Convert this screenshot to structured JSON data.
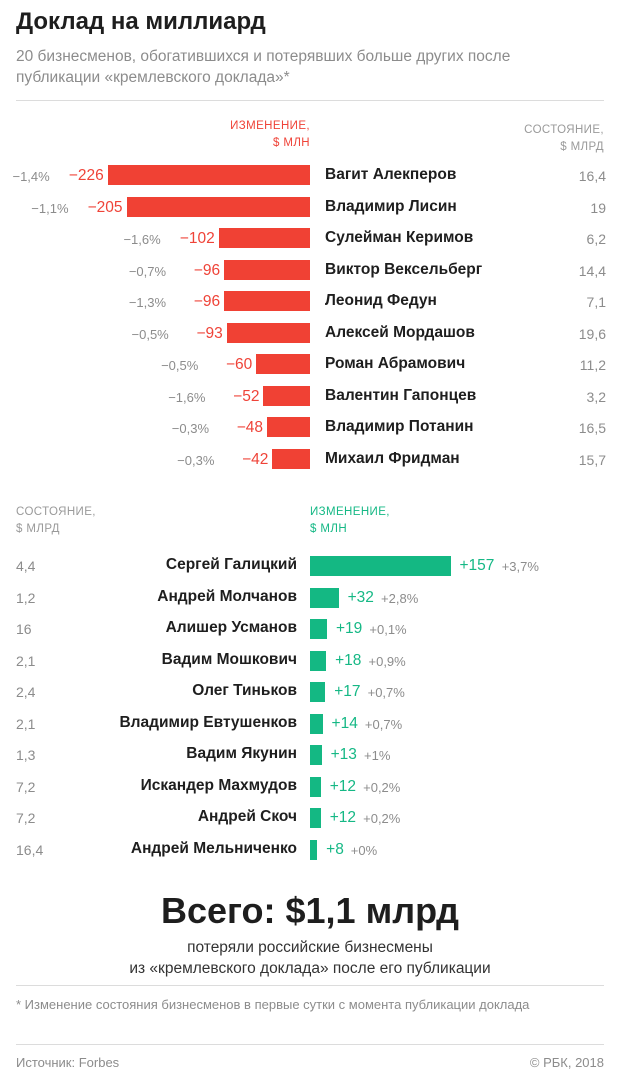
{
  "header": {
    "title": "Доклад на миллиард",
    "subtitle": "20 бизнесменов, обогатившихся и потерявших больше других после публикации «кремлевского доклада»*"
  },
  "losers_headers": {
    "change": "ИЗМЕНЕНИЕ,\n$ МЛН",
    "wealth": "СОСТОЯНИЕ,\n$ МЛРД"
  },
  "gainers_headers": {
    "wealth": "СОСТОЯНИЕ,\n$ МЛРД",
    "change": "ИЗМЕНЕНИЕ,\n$ МЛН"
  },
  "chart_data": [
    {
      "type": "bar",
      "orientation": "horizontal",
      "colors": {
        "bar": "#f04134"
      },
      "rows": [
        {
          "name": "Вагит Алекперов",
          "change": -226,
          "change_label": "−226",
          "pct": "−1,4%",
          "wealth": "16,4"
        },
        {
          "name": "Владимир Лисин",
          "change": -205,
          "change_label": "−205",
          "pct": "−1,1%",
          "wealth": "19"
        },
        {
          "name": "Сулейман Керимов",
          "change": -102,
          "change_label": "−102",
          "pct": "−1,6%",
          "wealth": "6,2"
        },
        {
          "name": "Виктор Вексельберг",
          "change": -96,
          "change_label": "−96",
          "pct": "−0,7%",
          "wealth": "14,4"
        },
        {
          "name": "Леонид Федун",
          "change": -96,
          "change_label": "−96",
          "pct": "−1,3%",
          "wealth": "7,1"
        },
        {
          "name": "Алексей Мордашов",
          "change": -93,
          "change_label": "−93",
          "pct": "−0,5%",
          "wealth": "19,6"
        },
        {
          "name": "Роман Абрамович",
          "change": -60,
          "change_label": "−60",
          "pct": "−0,5%",
          "wealth": "11,2"
        },
        {
          "name": "Валентин Гапонцев",
          "change": -52,
          "change_label": "−52",
          "pct": "−1,6%",
          "wealth": "3,2"
        },
        {
          "name": "Владимир Потанин",
          "change": -48,
          "change_label": "−48",
          "pct": "−0,3%",
          "wealth": "16,5"
        },
        {
          "name": "Михаил Фридман",
          "change": -42,
          "change_label": "−42",
          "pct": "−0,3%",
          "wealth": "15,7"
        }
      ]
    },
    {
      "type": "bar",
      "orientation": "horizontal",
      "colors": {
        "bar": "#14b883"
      },
      "rows": [
        {
          "name": "Сергей Галицкий",
          "change": 157,
          "change_label": "+157",
          "pct": "+3,7%",
          "wealth": "4,4"
        },
        {
          "name": "Андрей Молчанов",
          "change": 32,
          "change_label": "+32",
          "pct": "+2,8%",
          "wealth": "1,2"
        },
        {
          "name": "Алишер Усманов",
          "change": 19,
          "change_label": "+19",
          "pct": "+0,1%",
          "wealth": "16"
        },
        {
          "name": "Вадим Мошкович",
          "change": 18,
          "change_label": "+18",
          "pct": "+0,9%",
          "wealth": "2,1"
        },
        {
          "name": "Олег Тиньков",
          "change": 17,
          "change_label": "+17",
          "pct": "+0,7%",
          "wealth": "2,4"
        },
        {
          "name": "Владимир Евтушенков",
          "change": 14,
          "change_label": "+14",
          "pct": "+0,7%",
          "wealth": "2,1"
        },
        {
          "name": "Вадим Якунин",
          "change": 13,
          "change_label": "+13",
          "pct": "+1%",
          "wealth": "1,3"
        },
        {
          "name": "Искандер Махмудов",
          "change": 12,
          "change_label": "+12",
          "pct": "+0,2%",
          "wealth": "7,2"
        },
        {
          "name": "Андрей Скоч",
          "change": 12,
          "change_label": "+12",
          "pct": "+0,2%",
          "wealth": "7,2"
        },
        {
          "name": "Андрей Мельниченко",
          "change": 8,
          "change_label": "+8",
          "pct": "+0%",
          "wealth": "16,4"
        }
      ]
    }
  ],
  "total": {
    "headline": "Всего: $1,1 млрд",
    "caption": "потеряли российские бизнесмены\nиз «кремлевского доклада» после его публикации"
  },
  "footer": {
    "footnote": "* Изменение состояния бизнесменов в первые сутки с момента публикации доклада",
    "source": "Источник: Forbes",
    "copyright": "© РБК, 2018"
  }
}
